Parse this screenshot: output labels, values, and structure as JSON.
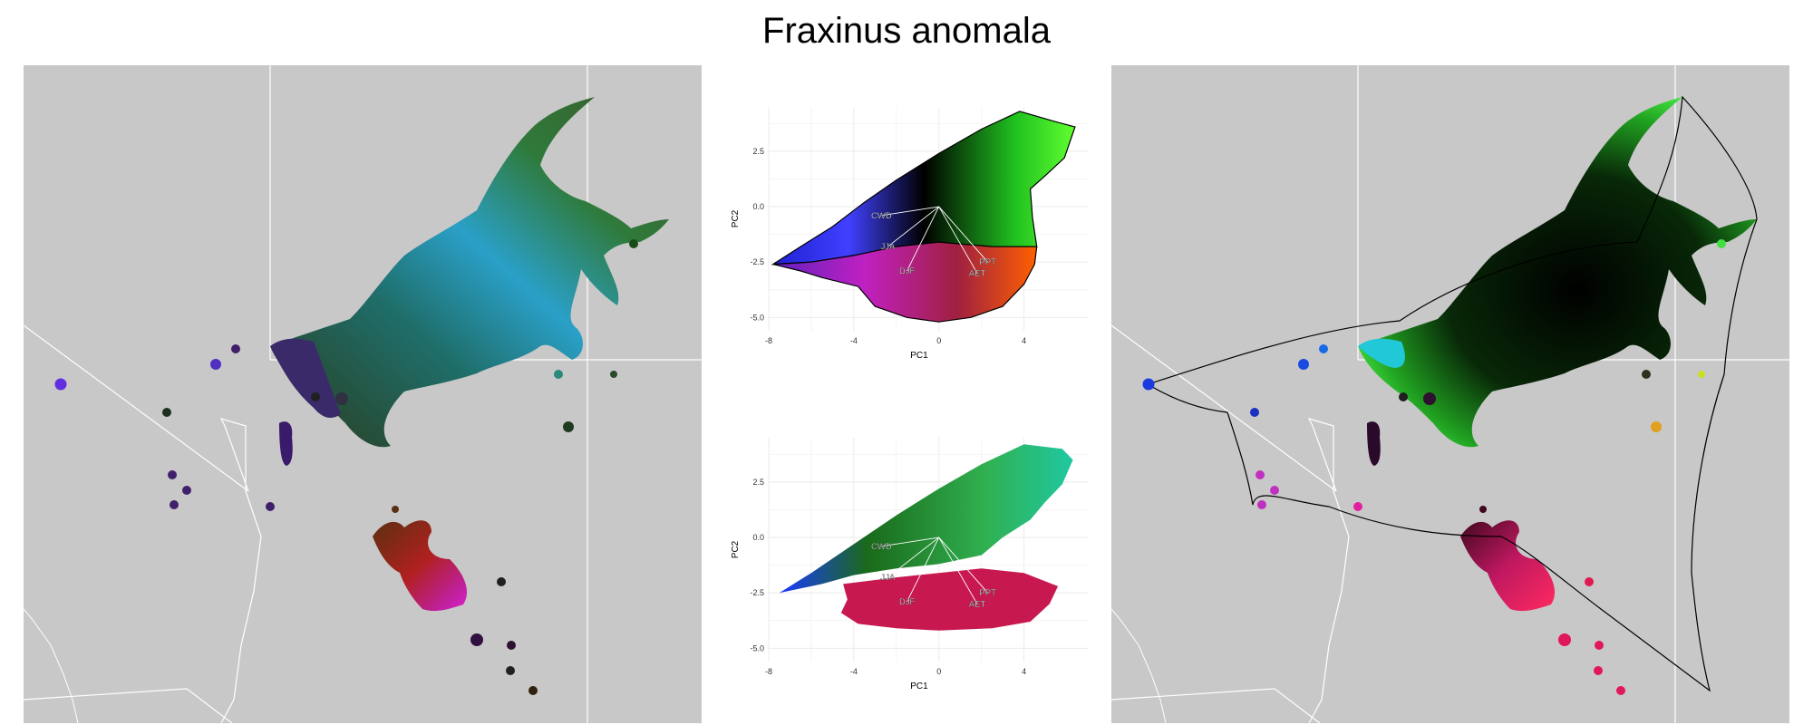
{
  "title": "Fraxinus anomala",
  "colors": {
    "map_background": "#c8c8c8",
    "border": "#ffffff",
    "axis_text": "#333333",
    "grid": "#ebebeb",
    "outline": "#000000"
  },
  "chart_data": [
    {
      "type": "map",
      "panel": "left",
      "description_free": true,
      "legend": "none"
    },
    {
      "type": "scatter",
      "panel": "pca-top",
      "xlabel": "PC1",
      "ylabel": "PC2",
      "xlim": [
        -8,
        7
      ],
      "ylim": [
        -5.6,
        4.5
      ],
      "xticks": [
        -8,
        -4,
        0,
        4
      ],
      "yticks": [
        2.5,
        0.0,
        -2.5,
        -5.0
      ],
      "ytick_labels": [
        "2.5",
        "0.0",
        "-2.5",
        "-5.0"
      ],
      "grid": true,
      "loadings": [
        {
          "label": "CWD",
          "x": -2.7,
          "y": -0.4
        },
        {
          "label": "JJA",
          "x": -2.4,
          "y": -1.8
        },
        {
          "label": "DJF",
          "x": -1.5,
          "y": -2.9
        },
        {
          "label": "PPT",
          "x": 2.3,
          "y": -2.5
        },
        {
          "label": "AET",
          "x": 1.8,
          "y": -3.0
        }
      ]
    },
    {
      "type": "scatter",
      "panel": "pca-bottom",
      "xlabel": "PC1",
      "ylabel": "PC2",
      "xlim": [
        -8,
        7
      ],
      "ylim": [
        -5.6,
        4.5
      ],
      "xticks": [
        -8,
        -4,
        0,
        4
      ],
      "yticks": [
        2.5,
        0.0,
        -2.5,
        -5.0
      ],
      "ytick_labels": [
        "2.5",
        "0.0",
        "-2.5",
        "-5.0"
      ],
      "grid": true,
      "loadings": [
        {
          "label": "CWD",
          "x": -2.7,
          "y": -0.4
        },
        {
          "label": "JJA",
          "x": -2.4,
          "y": -1.8
        },
        {
          "label": "DJF",
          "x": -1.5,
          "y": -2.9
        },
        {
          "label": "PPT",
          "x": 2.3,
          "y": -2.5
        },
        {
          "label": "AET",
          "x": 1.8,
          "y": -3.0
        }
      ]
    },
    {
      "type": "map",
      "panel": "right",
      "legend": "none"
    }
  ]
}
